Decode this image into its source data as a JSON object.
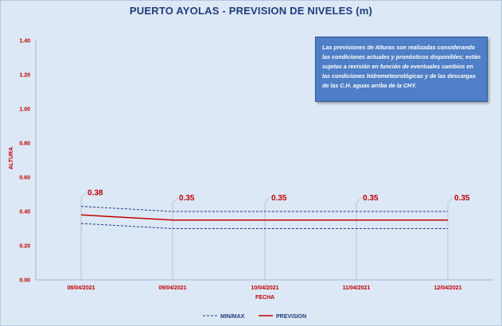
{
  "chart_data": {
    "type": "line",
    "title": "PUERTO AYOLAS - PREVISION DE NIVELES (m)",
    "xlabel": "FECHA",
    "ylabel": "ALTURA",
    "categories": [
      "08/04/2021",
      "09/04/2021",
      "10/04/2021",
      "11/04/2021",
      "12/04/2021"
    ],
    "ylim": [
      0,
      1.4
    ],
    "yticks": [
      "0.00",
      "0.20",
      "0.40",
      "0.60",
      "0.80",
      "1.00",
      "1.20",
      "1.40"
    ],
    "series": [
      {
        "name": "PREVISION",
        "values": [
          0.38,
          0.35,
          0.35,
          0.35,
          0.35
        ],
        "color": "#c00000",
        "style": "solid"
      },
      {
        "name": "MIN/MAX",
        "values": [
          0.43,
          0.4,
          0.4,
          0.4,
          0.4
        ],
        "color": "#1f3d7a",
        "style": "dashed"
      },
      {
        "name": "MIN/MAX",
        "values": [
          0.33,
          0.3,
          0.3,
          0.3,
          0.3
        ],
        "color": "#1f3d7a",
        "style": "dashed"
      }
    ],
    "data_labels": [
      "0.38",
      "0.35",
      "0.35",
      "0.35",
      "0.35"
    ],
    "legend": [
      "MIN/MAX",
      "PREVISION"
    ],
    "legend_position": "bottom",
    "grid": false,
    "background": "#dde8f6"
  },
  "note": {
    "text": "Las previsiones de Alturas son realizadas considerando las condiciones actuales y pronósticos disponibles; están sujetas a revisión en función de eventuales cambios en las condiciones hidrometeorológicas y de las descargas de las C.H. aguas arriba de la CHY.",
    "color": "#4f7fc6"
  }
}
